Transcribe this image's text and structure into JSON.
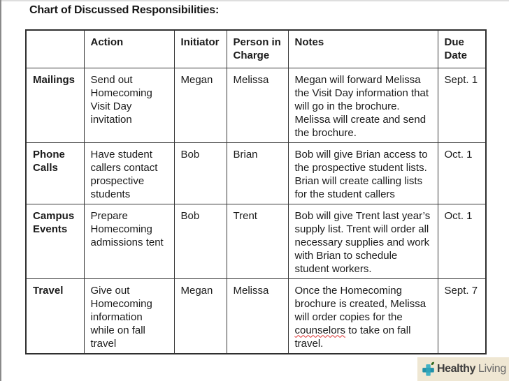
{
  "page": {
    "title": "Chart of Discussed Responsibilities:"
  },
  "table": {
    "headers": [
      "",
      "Action",
      "Initiator",
      "Person in Charge",
      "Notes",
      "Due Date"
    ],
    "rows": [
      {
        "category": "Mailings",
        "action": "Send out Homecoming Visit Day invitation",
        "initiator": "Megan",
        "person_in_charge": "Melissa",
        "notes": "Megan will forward Melissa the Visit Day information that will go in the brochure. Melissa will create and send the brochure.",
        "due_date": "Sept. 1"
      },
      {
        "category": "Phone Calls",
        "action": "Have student callers contact prospective students",
        "initiator": "Bob",
        "person_in_charge": "Brian",
        "notes": "Bob will give Brian access to the prospective student lists. Brian will create calling lists for the student callers",
        "due_date": "Oct. 1"
      },
      {
        "category": "Campus Events",
        "action": "Prepare Homecoming admissions tent",
        "initiator": "Bob",
        "person_in_charge": "Trent",
        "notes": "Bob will give Trent last year’s supply list. Trent will order all necessary supplies and work with Brian to schedule student workers.",
        "due_date": "Oct. 1"
      },
      {
        "category": "Travel",
        "action": "Give out Homecoming information while on fall travel",
        "initiator": "Megan",
        "person_in_charge": "Melissa",
        "notes": "Once the Homecoming brochure is created, Melissa will order copies for the counselors to take on fall travel.",
        "misspelled_word": "counselors",
        "due_date": "Sept. 7"
      }
    ]
  },
  "footer": {
    "logo": {
      "icon": "plus-cross-leaf-icon",
      "text_bold": "Healthy",
      "text_light": "Living",
      "colors": {
        "background": "#efe7d3",
        "cross_teal_dark": "#2191a9",
        "cross_teal_light": "#41b1c5",
        "leaf_green": "#2e661c",
        "text_bold": "#3c3c3c",
        "text_light": "#696969"
      }
    }
  }
}
